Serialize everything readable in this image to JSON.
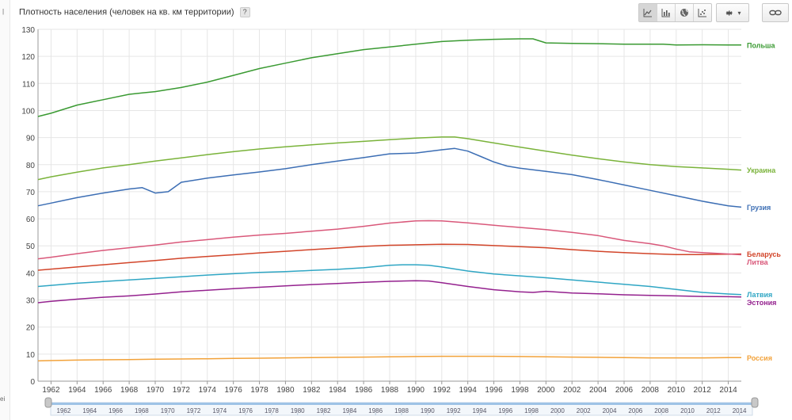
{
  "header": {
    "title": "Плотность населения (человек на кв. км территории)",
    "help_label": "?"
  },
  "toolbar": {
    "views": [
      "line-chart-icon",
      "bar-chart-icon",
      "globe-icon",
      "scatter-chart-icon"
    ],
    "settings_icon": "gear-icon",
    "settings_arrow": "▾",
    "link_icon": "link-icon"
  },
  "edge_text": "ei",
  "colors": {
    "grid": "#e6e6e6",
    "axis": "#999999",
    "tick_text": "#444444"
  },
  "chart_data": {
    "type": "line",
    "title": "Плотность населения (человек на кв. км территории)",
    "xlabel": "",
    "ylabel": "",
    "xlim": [
      1961,
      2015
    ],
    "ylim": [
      0,
      130
    ],
    "y_ticks": [
      0,
      10,
      20,
      30,
      40,
      50,
      60,
      70,
      80,
      90,
      100,
      110,
      120,
      130
    ],
    "x_ticks": [
      1962,
      1964,
      1966,
      1968,
      1970,
      1972,
      1974,
      1976,
      1978,
      1980,
      1982,
      1984,
      1986,
      1988,
      1990,
      1992,
      1994,
      1996,
      1998,
      2000,
      2002,
      2004,
      2006,
      2008,
      2010,
      2012,
      2014
    ],
    "grid": true,
    "legend": "right-labels",
    "series": [
      {
        "name": "Польша",
        "color": "#3a9a32",
        "points": [
          [
            1961,
            97.8
          ],
          [
            1962,
            99
          ],
          [
            1964,
            102
          ],
          [
            1966,
            104
          ],
          [
            1968,
            106
          ],
          [
            1969,
            106.5
          ],
          [
            1970,
            107
          ],
          [
            1972,
            108.5
          ],
          [
            1974,
            110.5
          ],
          [
            1976,
            113
          ],
          [
            1978,
            115.5
          ],
          [
            1980,
            117.5
          ],
          [
            1982,
            119.5
          ],
          [
            1984,
            121
          ],
          [
            1986,
            122.5
          ],
          [
            1988,
            123.5
          ],
          [
            1990,
            124.5
          ],
          [
            1992,
            125.5
          ],
          [
            1994,
            126
          ],
          [
            1996,
            126.3
          ],
          [
            1998,
            126.5
          ],
          [
            1999,
            126.5
          ],
          [
            2000,
            125
          ],
          [
            2002,
            124.8
          ],
          [
            2004,
            124.7
          ],
          [
            2006,
            124.5
          ],
          [
            2008,
            124.5
          ],
          [
            2009,
            124.5
          ],
          [
            2010,
            124.2
          ],
          [
            2012,
            124.3
          ],
          [
            2014,
            124.2
          ],
          [
            2015,
            124.2
          ]
        ]
      },
      {
        "name": "Украина",
        "color": "#7ab33a",
        "points": [
          [
            1961,
            74.5
          ],
          [
            1962,
            75.5
          ],
          [
            1964,
            77.2
          ],
          [
            1966,
            78.8
          ],
          [
            1968,
            80
          ],
          [
            1970,
            81.3
          ],
          [
            1972,
            82.5
          ],
          [
            1974,
            83.7
          ],
          [
            1976,
            84.8
          ],
          [
            1978,
            85.8
          ],
          [
            1980,
            86.6
          ],
          [
            1982,
            87.3
          ],
          [
            1984,
            88
          ],
          [
            1986,
            88.6
          ],
          [
            1988,
            89.2
          ],
          [
            1990,
            89.8
          ],
          [
            1992,
            90.2
          ],
          [
            1993,
            90.2
          ],
          [
            1994,
            89.6
          ],
          [
            1996,
            88
          ],
          [
            1998,
            86.5
          ],
          [
            2000,
            85
          ],
          [
            2002,
            83.5
          ],
          [
            2004,
            82.2
          ],
          [
            2006,
            81
          ],
          [
            2008,
            80
          ],
          [
            2010,
            79.3
          ],
          [
            2012,
            78.8
          ],
          [
            2014,
            78.3
          ],
          [
            2015,
            78
          ]
        ]
      },
      {
        "name": "Грузия",
        "color": "#3c6eb4",
        "points": [
          [
            1961,
            64.8
          ],
          [
            1962,
            65.8
          ],
          [
            1964,
            67.8
          ],
          [
            1966,
            69.5
          ],
          [
            1968,
            71
          ],
          [
            1969,
            71.5
          ],
          [
            1970,
            69.5
          ],
          [
            1971,
            70
          ],
          [
            1972,
            73.5
          ],
          [
            1974,
            75
          ],
          [
            1976,
            76.2
          ],
          [
            1978,
            77.3
          ],
          [
            1980,
            78.5
          ],
          [
            1982,
            80
          ],
          [
            1984,
            81.3
          ],
          [
            1986,
            82.6
          ],
          [
            1988,
            84
          ],
          [
            1990,
            84.3
          ],
          [
            1992,
            85.5
          ],
          [
            1993,
            86
          ],
          [
            1994,
            85
          ],
          [
            1995,
            83
          ],
          [
            1996,
            81
          ],
          [
            1997,
            79.5
          ],
          [
            1998,
            78.7
          ],
          [
            2000,
            77.5
          ],
          [
            2002,
            76.3
          ],
          [
            2004,
            74.5
          ],
          [
            2006,
            72.5
          ],
          [
            2008,
            70.5
          ],
          [
            2010,
            68.5
          ],
          [
            2012,
            66.5
          ],
          [
            2014,
            64.8
          ],
          [
            2015,
            64.3
          ]
        ]
      },
      {
        "name": "Беларусь",
        "color": "#d2452a",
        "points": [
          [
            1961,
            41
          ],
          [
            1962,
            41.4
          ],
          [
            1964,
            42.2
          ],
          [
            1966,
            43
          ],
          [
            1968,
            43.8
          ],
          [
            1970,
            44.6
          ],
          [
            1972,
            45.4
          ],
          [
            1974,
            46.1
          ],
          [
            1976,
            46.7
          ],
          [
            1978,
            47.4
          ],
          [
            1980,
            48
          ],
          [
            1982,
            48.6
          ],
          [
            1984,
            49.2
          ],
          [
            1986,
            49.8
          ],
          [
            1988,
            50.2
          ],
          [
            1990,
            50.4
          ],
          [
            1992,
            50.6
          ],
          [
            1994,
            50.5
          ],
          [
            1996,
            50.1
          ],
          [
            1998,
            49.7
          ],
          [
            2000,
            49.3
          ],
          [
            2002,
            48.6
          ],
          [
            2004,
            48
          ],
          [
            2006,
            47.5
          ],
          [
            2008,
            47.1
          ],
          [
            2010,
            46.8
          ],
          [
            2012,
            46.8
          ],
          [
            2014,
            46.9
          ],
          [
            2015,
            47
          ]
        ]
      },
      {
        "name": "Литва",
        "color": "#d9587a",
        "points": [
          [
            1961,
            45.2
          ],
          [
            1962,
            45.8
          ],
          [
            1964,
            47.1
          ],
          [
            1966,
            48.3
          ],
          [
            1968,
            49.3
          ],
          [
            1970,
            50.3
          ],
          [
            1972,
            51.4
          ],
          [
            1974,
            52.3
          ],
          [
            1976,
            53.2
          ],
          [
            1978,
            54
          ],
          [
            1980,
            54.6
          ],
          [
            1982,
            55.4
          ],
          [
            1984,
            56.2
          ],
          [
            1986,
            57.2
          ],
          [
            1988,
            58.4
          ],
          [
            1990,
            59.2
          ],
          [
            1991,
            59.3
          ],
          [
            1992,
            59.2
          ],
          [
            1994,
            58.5
          ],
          [
            1996,
            57.6
          ],
          [
            1998,
            56.8
          ],
          [
            2000,
            56
          ],
          [
            2002,
            55
          ],
          [
            2004,
            53.8
          ],
          [
            2006,
            52
          ],
          [
            2008,
            50.8
          ],
          [
            2009,
            50
          ],
          [
            2010,
            48.8
          ],
          [
            2011,
            47.8
          ],
          [
            2012,
            47.5
          ],
          [
            2014,
            47
          ],
          [
            2015,
            46.7
          ]
        ]
      },
      {
        "name": "Латвия",
        "color": "#2fa6c4",
        "points": [
          [
            1961,
            35
          ],
          [
            1962,
            35.4
          ],
          [
            1964,
            36.2
          ],
          [
            1966,
            36.8
          ],
          [
            1968,
            37.4
          ],
          [
            1970,
            38
          ],
          [
            1972,
            38.6
          ],
          [
            1974,
            39.2
          ],
          [
            1976,
            39.7
          ],
          [
            1978,
            40.2
          ],
          [
            1980,
            40.5
          ],
          [
            1982,
            40.9
          ],
          [
            1984,
            41.3
          ],
          [
            1986,
            41.9
          ],
          [
            1988,
            42.8
          ],
          [
            1989,
            43
          ],
          [
            1990,
            43
          ],
          [
            1991,
            42.8
          ],
          [
            1992,
            42.2
          ],
          [
            1994,
            40.7
          ],
          [
            1996,
            39.6
          ],
          [
            1998,
            38.9
          ],
          [
            2000,
            38.2
          ],
          [
            2002,
            37.4
          ],
          [
            2004,
            36.6
          ],
          [
            2006,
            35.8
          ],
          [
            2008,
            35
          ],
          [
            2010,
            33.9
          ],
          [
            2012,
            32.8
          ],
          [
            2014,
            32.2
          ],
          [
            2015,
            32
          ]
        ]
      },
      {
        "name": "Эстония",
        "color": "#94218e",
        "points": [
          [
            1961,
            29
          ],
          [
            1962,
            29.5
          ],
          [
            1964,
            30.3
          ],
          [
            1966,
            31
          ],
          [
            1968,
            31.5
          ],
          [
            1970,
            32.2
          ],
          [
            1972,
            33
          ],
          [
            1974,
            33.6
          ],
          [
            1976,
            34.2
          ],
          [
            1978,
            34.7
          ],
          [
            1980,
            35.2
          ],
          [
            1982,
            35.7
          ],
          [
            1984,
            36.1
          ],
          [
            1986,
            36.5
          ],
          [
            1988,
            36.9
          ],
          [
            1990,
            37.1
          ],
          [
            1991,
            37
          ],
          [
            1992,
            36.4
          ],
          [
            1994,
            35
          ],
          [
            1996,
            33.8
          ],
          [
            1998,
            33
          ],
          [
            1999,
            32.8
          ],
          [
            2000,
            33.2
          ],
          [
            2002,
            32.6
          ],
          [
            2004,
            32.3
          ],
          [
            2006,
            31.9
          ],
          [
            2008,
            31.7
          ],
          [
            2010,
            31.5
          ],
          [
            2012,
            31.3
          ],
          [
            2014,
            31.2
          ],
          [
            2015,
            31.1
          ]
        ]
      },
      {
        "name": "Россия",
        "color": "#f2a23a",
        "points": [
          [
            1961,
            7.5
          ],
          [
            1962,
            7.6
          ],
          [
            1964,
            7.8
          ],
          [
            1966,
            7.9
          ],
          [
            1968,
            8
          ],
          [
            1970,
            8.1
          ],
          [
            1972,
            8.2
          ],
          [
            1974,
            8.3
          ],
          [
            1976,
            8.4
          ],
          [
            1978,
            8.5
          ],
          [
            1980,
            8.6
          ],
          [
            1982,
            8.7
          ],
          [
            1984,
            8.8
          ],
          [
            1986,
            8.9
          ],
          [
            1988,
            9
          ],
          [
            1990,
            9.1
          ],
          [
            1992,
            9.2
          ],
          [
            1994,
            9.2
          ],
          [
            1996,
            9.2
          ],
          [
            1998,
            9.1
          ],
          [
            2000,
            9
          ],
          [
            2002,
            8.9
          ],
          [
            2004,
            8.8
          ],
          [
            2006,
            8.7
          ],
          [
            2008,
            8.6
          ],
          [
            2010,
            8.6
          ],
          [
            2012,
            8.6
          ],
          [
            2014,
            8.7
          ],
          [
            2015,
            8.7
          ]
        ]
      }
    ]
  }
}
